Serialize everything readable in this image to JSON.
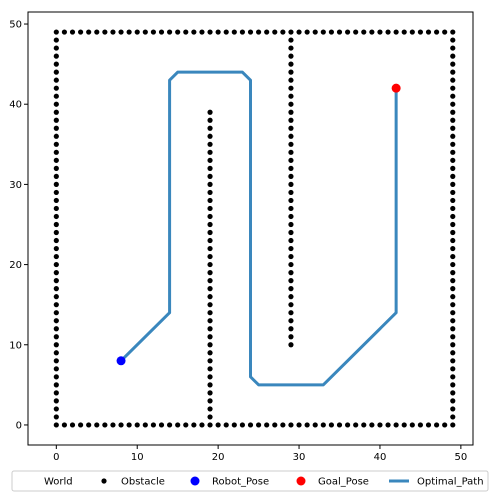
{
  "chart_data": {
    "type": "scatter",
    "xlim": [
      -3.5,
      51.5
    ],
    "ylim": [
      -2.5,
      51.5
    ],
    "x_ticks": [
      0,
      10,
      20,
      30,
      40,
      50
    ],
    "y_ticks": [
      0,
      10,
      20,
      30,
      40,
      50
    ],
    "grid": false,
    "legend_position": "bottom",
    "legend": [
      "World",
      "Obstacle",
      "Robot_Pose",
      "Goal_Pose",
      "Optimal_Path"
    ],
    "series": [
      {
        "name": "Obstacle",
        "kind": "points",
        "color": "#000000",
        "segments": [
          {
            "from": [
              0,
              0
            ],
            "to": [
              49,
              0
            ],
            "step": 1
          },
          {
            "from": [
              0,
              49
            ],
            "to": [
              49,
              49
            ],
            "step": 1
          },
          {
            "from": [
              0,
              1
            ],
            "to": [
              0,
              48
            ],
            "step": 1
          },
          {
            "from": [
              49,
              1
            ],
            "to": [
              49,
              48
            ],
            "step": 1
          },
          {
            "from": [
              19,
              1
            ],
            "to": [
              19,
              39
            ],
            "step": 1
          },
          {
            "from": [
              29,
              10
            ],
            "to": [
              29,
              48
            ],
            "step": 1
          }
        ]
      },
      {
        "name": "Robot_Pose",
        "kind": "marker",
        "color": "#0000ff",
        "x": 8,
        "y": 8
      },
      {
        "name": "Goal_Pose",
        "kind": "marker",
        "color": "#ff0000",
        "x": 42,
        "y": 42
      },
      {
        "name": "Optimal_Path",
        "kind": "line",
        "color": "#3a87bd",
        "points": [
          [
            8,
            8
          ],
          [
            14,
            14
          ],
          [
            14,
            43
          ],
          [
            15,
            44
          ],
          [
            23,
            44
          ],
          [
            24,
            43
          ],
          [
            24,
            6
          ],
          [
            25,
            5
          ],
          [
            33,
            5
          ],
          [
            42,
            14
          ],
          [
            42,
            42
          ]
        ]
      }
    ]
  }
}
